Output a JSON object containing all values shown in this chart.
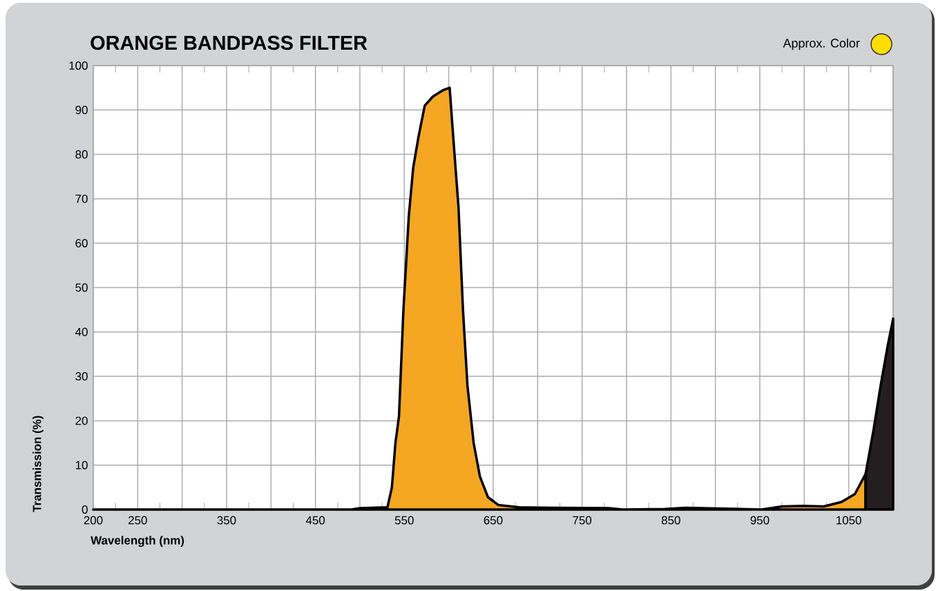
{
  "chart_data": {
    "type": "area",
    "title": "ORANGE BANDPASS FILTER",
    "xlabel": "Wavelength (nm)",
    "ylabel": "Transmission (%)",
    "annotations": [
      "Approx. Color"
    ],
    "xlim": [
      200,
      1100
    ],
    "ylim": [
      0,
      100
    ],
    "xticks": [
      200,
      250,
      {
        "value": 300,
        "label": null
      },
      350,
      {
        "value": 400,
        "label": null
      },
      450,
      {
        "value": 500,
        "label": null
      },
      550,
      {
        "value": 600,
        "label": null
      },
      650,
      {
        "value": 700,
        "label": null
      },
      750,
      {
        "value": 800,
        "label": null
      },
      850,
      {
        "value": 900,
        "label": null
      },
      950,
      {
        "value": 1000,
        "label": null
      },
      1050,
      {
        "value": 1100,
        "label": null
      }
    ],
    "yticks": [
      0,
      10,
      20,
      30,
      40,
      50,
      60,
      70,
      80,
      90,
      100
    ],
    "grid": true,
    "series": [
      {
        "color": "#f5a623",
        "x": [
          200,
          300,
          400,
          490,
          500,
          531,
          536,
          540,
          544,
          549,
          555,
          560,
          566,
          573,
          582,
          594,
          601,
          605,
          611,
          616,
          621,
          628,
          635,
          644,
          656,
          679,
          720,
          780,
          796,
          843,
          866,
          913,
          952,
          975,
          999,
          1022,
          1042,
          1057,
          1069
        ],
        "values": [
          0,
          0,
          0,
          0,
          0.3,
          0.5,
          5,
          15,
          21,
          45,
          66,
          77,
          84,
          91,
          93,
          94.5,
          95,
          84,
          68,
          45,
          28,
          15,
          7.5,
          2.8,
          1,
          0.5,
          0.4,
          0.3,
          0,
          0.1,
          0.4,
          0.2,
          0,
          0.7,
          0.8,
          0.7,
          1.7,
          3.5,
          8
        ]
      },
      {
        "color": "#231f20",
        "x": [
          1069,
          1078,
          1086,
          1094,
          1100
        ],
        "values": [
          8,
          18,
          28,
          37,
          43
        ]
      }
    ]
  }
}
